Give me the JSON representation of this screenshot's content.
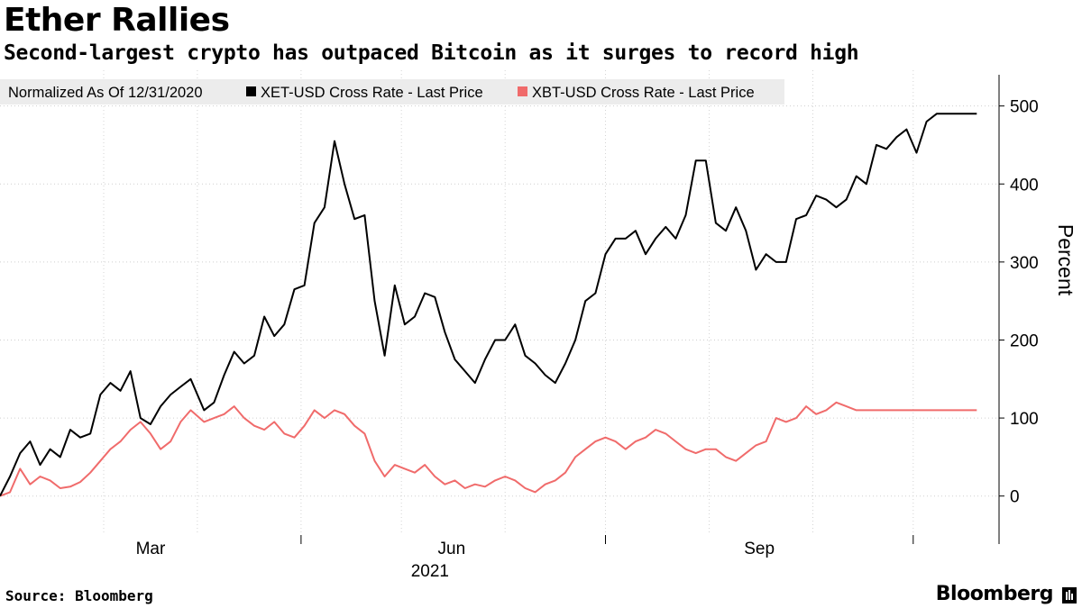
{
  "header": {
    "title": "Ether Rallies",
    "subtitle": "Second-largest crypto has outpaced Bitcoin as it surges to record high"
  },
  "footer": {
    "source": "Source: Bloomberg",
    "brand": "Bloomberg"
  },
  "chart_data": {
    "type": "line",
    "legend": {
      "prefix": "Normalized As Of 12/31/2020",
      "placement": "top-left"
    },
    "ylabel": "Percent",
    "xlabel": "2021",
    "x_ticks": [
      "Mar",
      "Jun",
      "Sep"
    ],
    "y_ticks": [
      0,
      100,
      200,
      300,
      400,
      500
    ],
    "ylim": [
      -50,
      540
    ],
    "x_range": [
      "2021-01-01",
      "2021-10-21"
    ],
    "grid": true,
    "colors": {
      "ether": "#000000",
      "bitcoin": "#f06b6b"
    },
    "series": [
      {
        "name": "XET-USD Cross Rate - Last Price",
        "color": "#000000",
        "x": [
          "2021-01-01",
          "2021-01-04",
          "2021-01-07",
          "2021-01-10",
          "2021-01-13",
          "2021-01-16",
          "2021-01-19",
          "2021-01-22",
          "2021-01-25",
          "2021-01-28",
          "2021-01-31",
          "2021-02-03",
          "2021-02-06",
          "2021-02-09",
          "2021-02-12",
          "2021-02-15",
          "2021-02-18",
          "2021-02-21",
          "2021-02-24",
          "2021-02-27",
          "2021-03-03",
          "2021-03-06",
          "2021-03-09",
          "2021-03-12",
          "2021-03-15",
          "2021-03-18",
          "2021-03-21",
          "2021-03-24",
          "2021-03-27",
          "2021-03-30",
          "2021-04-02",
          "2021-04-05",
          "2021-04-08",
          "2021-04-11",
          "2021-04-14",
          "2021-04-17",
          "2021-04-20",
          "2021-04-23",
          "2021-04-26",
          "2021-04-29",
          "2021-05-02",
          "2021-05-05",
          "2021-05-08",
          "2021-05-11",
          "2021-05-14",
          "2021-05-17",
          "2021-05-20",
          "2021-05-23",
          "2021-05-26",
          "2021-05-29",
          "2021-06-01",
          "2021-06-04",
          "2021-06-07",
          "2021-06-10",
          "2021-06-13",
          "2021-06-16",
          "2021-06-19",
          "2021-06-22",
          "2021-06-25",
          "2021-06-28",
          "2021-07-01",
          "2021-07-04",
          "2021-07-07",
          "2021-07-10",
          "2021-07-13",
          "2021-07-16",
          "2021-07-19",
          "2021-07-22",
          "2021-07-25",
          "2021-07-28",
          "2021-07-31",
          "2021-08-03",
          "2021-08-06",
          "2021-08-09",
          "2021-08-12",
          "2021-08-15",
          "2021-08-18",
          "2021-08-21",
          "2021-08-24",
          "2021-08-27",
          "2021-08-30",
          "2021-09-02",
          "2021-09-05",
          "2021-09-08",
          "2021-09-11",
          "2021-09-14",
          "2021-09-17",
          "2021-09-20",
          "2021-09-23",
          "2021-09-26",
          "2021-09-29",
          "2021-10-02",
          "2021-10-05",
          "2021-10-08",
          "2021-10-11",
          "2021-10-14",
          "2021-10-17",
          "2021-10-20"
        ],
        "values": [
          0,
          25,
          55,
          70,
          40,
          60,
          50,
          85,
          75,
          80,
          130,
          145,
          135,
          160,
          100,
          92,
          115,
          130,
          140,
          150,
          110,
          120,
          155,
          185,
          170,
          180,
          230,
          205,
          220,
          265,
          270,
          350,
          370,
          455,
          400,
          355,
          360,
          250,
          180,
          270,
          220,
          230,
          260,
          255,
          210,
          175,
          160,
          145,
          175,
          200,
          200,
          220,
          180,
          170,
          155,
          145,
          170,
          200,
          250,
          260,
          310,
          330,
          330,
          340,
          310,
          330,
          345,
          330,
          360,
          430,
          430,
          350,
          340,
          370,
          340,
          290,
          310,
          300,
          300,
          355,
          360,
          385,
          380,
          370,
          380,
          410,
          400,
          450,
          445,
          460,
          470,
          440,
          480,
          490,
          490,
          490,
          490,
          490
        ],
        "values_note": ""
      },
      {
        "name": "XBT-USD Cross Rate - Last Price",
        "color": "#f06b6b",
        "x": [
          "2021-01-01",
          "2021-01-04",
          "2021-01-07",
          "2021-01-10",
          "2021-01-13",
          "2021-01-16",
          "2021-01-19",
          "2021-01-22",
          "2021-01-25",
          "2021-01-28",
          "2021-01-31",
          "2021-02-03",
          "2021-02-06",
          "2021-02-09",
          "2021-02-12",
          "2021-02-15",
          "2021-02-18",
          "2021-02-21",
          "2021-02-24",
          "2021-02-27",
          "2021-03-03",
          "2021-03-06",
          "2021-03-09",
          "2021-03-12",
          "2021-03-15",
          "2021-03-18",
          "2021-03-21",
          "2021-03-24",
          "2021-03-27",
          "2021-03-30",
          "2021-04-02",
          "2021-04-05",
          "2021-04-08",
          "2021-04-11",
          "2021-04-14",
          "2021-04-17",
          "2021-04-20",
          "2021-04-23",
          "2021-04-26",
          "2021-04-29",
          "2021-05-02",
          "2021-05-05",
          "2021-05-08",
          "2021-05-11",
          "2021-05-14",
          "2021-05-17",
          "2021-05-20",
          "2021-05-23",
          "2021-05-26",
          "2021-05-29",
          "2021-06-01",
          "2021-06-04",
          "2021-06-07",
          "2021-06-10",
          "2021-06-13",
          "2021-06-16",
          "2021-06-19",
          "2021-06-22",
          "2021-06-25",
          "2021-06-28",
          "2021-07-01",
          "2021-07-04",
          "2021-07-07",
          "2021-07-10",
          "2021-07-13",
          "2021-07-16",
          "2021-07-19",
          "2021-07-22",
          "2021-07-25",
          "2021-07-28",
          "2021-07-31",
          "2021-08-03",
          "2021-08-06",
          "2021-08-09",
          "2021-08-12",
          "2021-08-15",
          "2021-08-18",
          "2021-08-21",
          "2021-08-24",
          "2021-08-27",
          "2021-08-30",
          "2021-09-02",
          "2021-09-05",
          "2021-09-08",
          "2021-09-11",
          "2021-09-14",
          "2021-09-17",
          "2021-09-20",
          "2021-09-23",
          "2021-09-26",
          "2021-09-29",
          "2021-10-02",
          "2021-10-05",
          "2021-10-08",
          "2021-10-11",
          "2021-10-14",
          "2021-10-17",
          "2021-10-20"
        ],
        "values": [
          0,
          5,
          35,
          15,
          25,
          20,
          10,
          12,
          18,
          30,
          45,
          60,
          70,
          85,
          95,
          80,
          60,
          70,
          95,
          110,
          95,
          100,
          105,
          115,
          100,
          90,
          85,
          95,
          80,
          75,
          90,
          110,
          100,
          110,
          105,
          90,
          80,
          45,
          25,
          40,
          35,
          30,
          40,
          25,
          15,
          20,
          10,
          15,
          12,
          20,
          25,
          20,
          10,
          5,
          15,
          20,
          30,
          50,
          60,
          70,
          75,
          70,
          60,
          70,
          75,
          85,
          80,
          70,
          60,
          55,
          60,
          60,
          50,
          45,
          55,
          65,
          70,
          100,
          95,
          100,
          115,
          105,
          110,
          120,
          115,
          110,
          110,
          110,
          110,
          110,
          110,
          110,
          110,
          110,
          110,
          110,
          110,
          110
        ]
      }
    ]
  }
}
